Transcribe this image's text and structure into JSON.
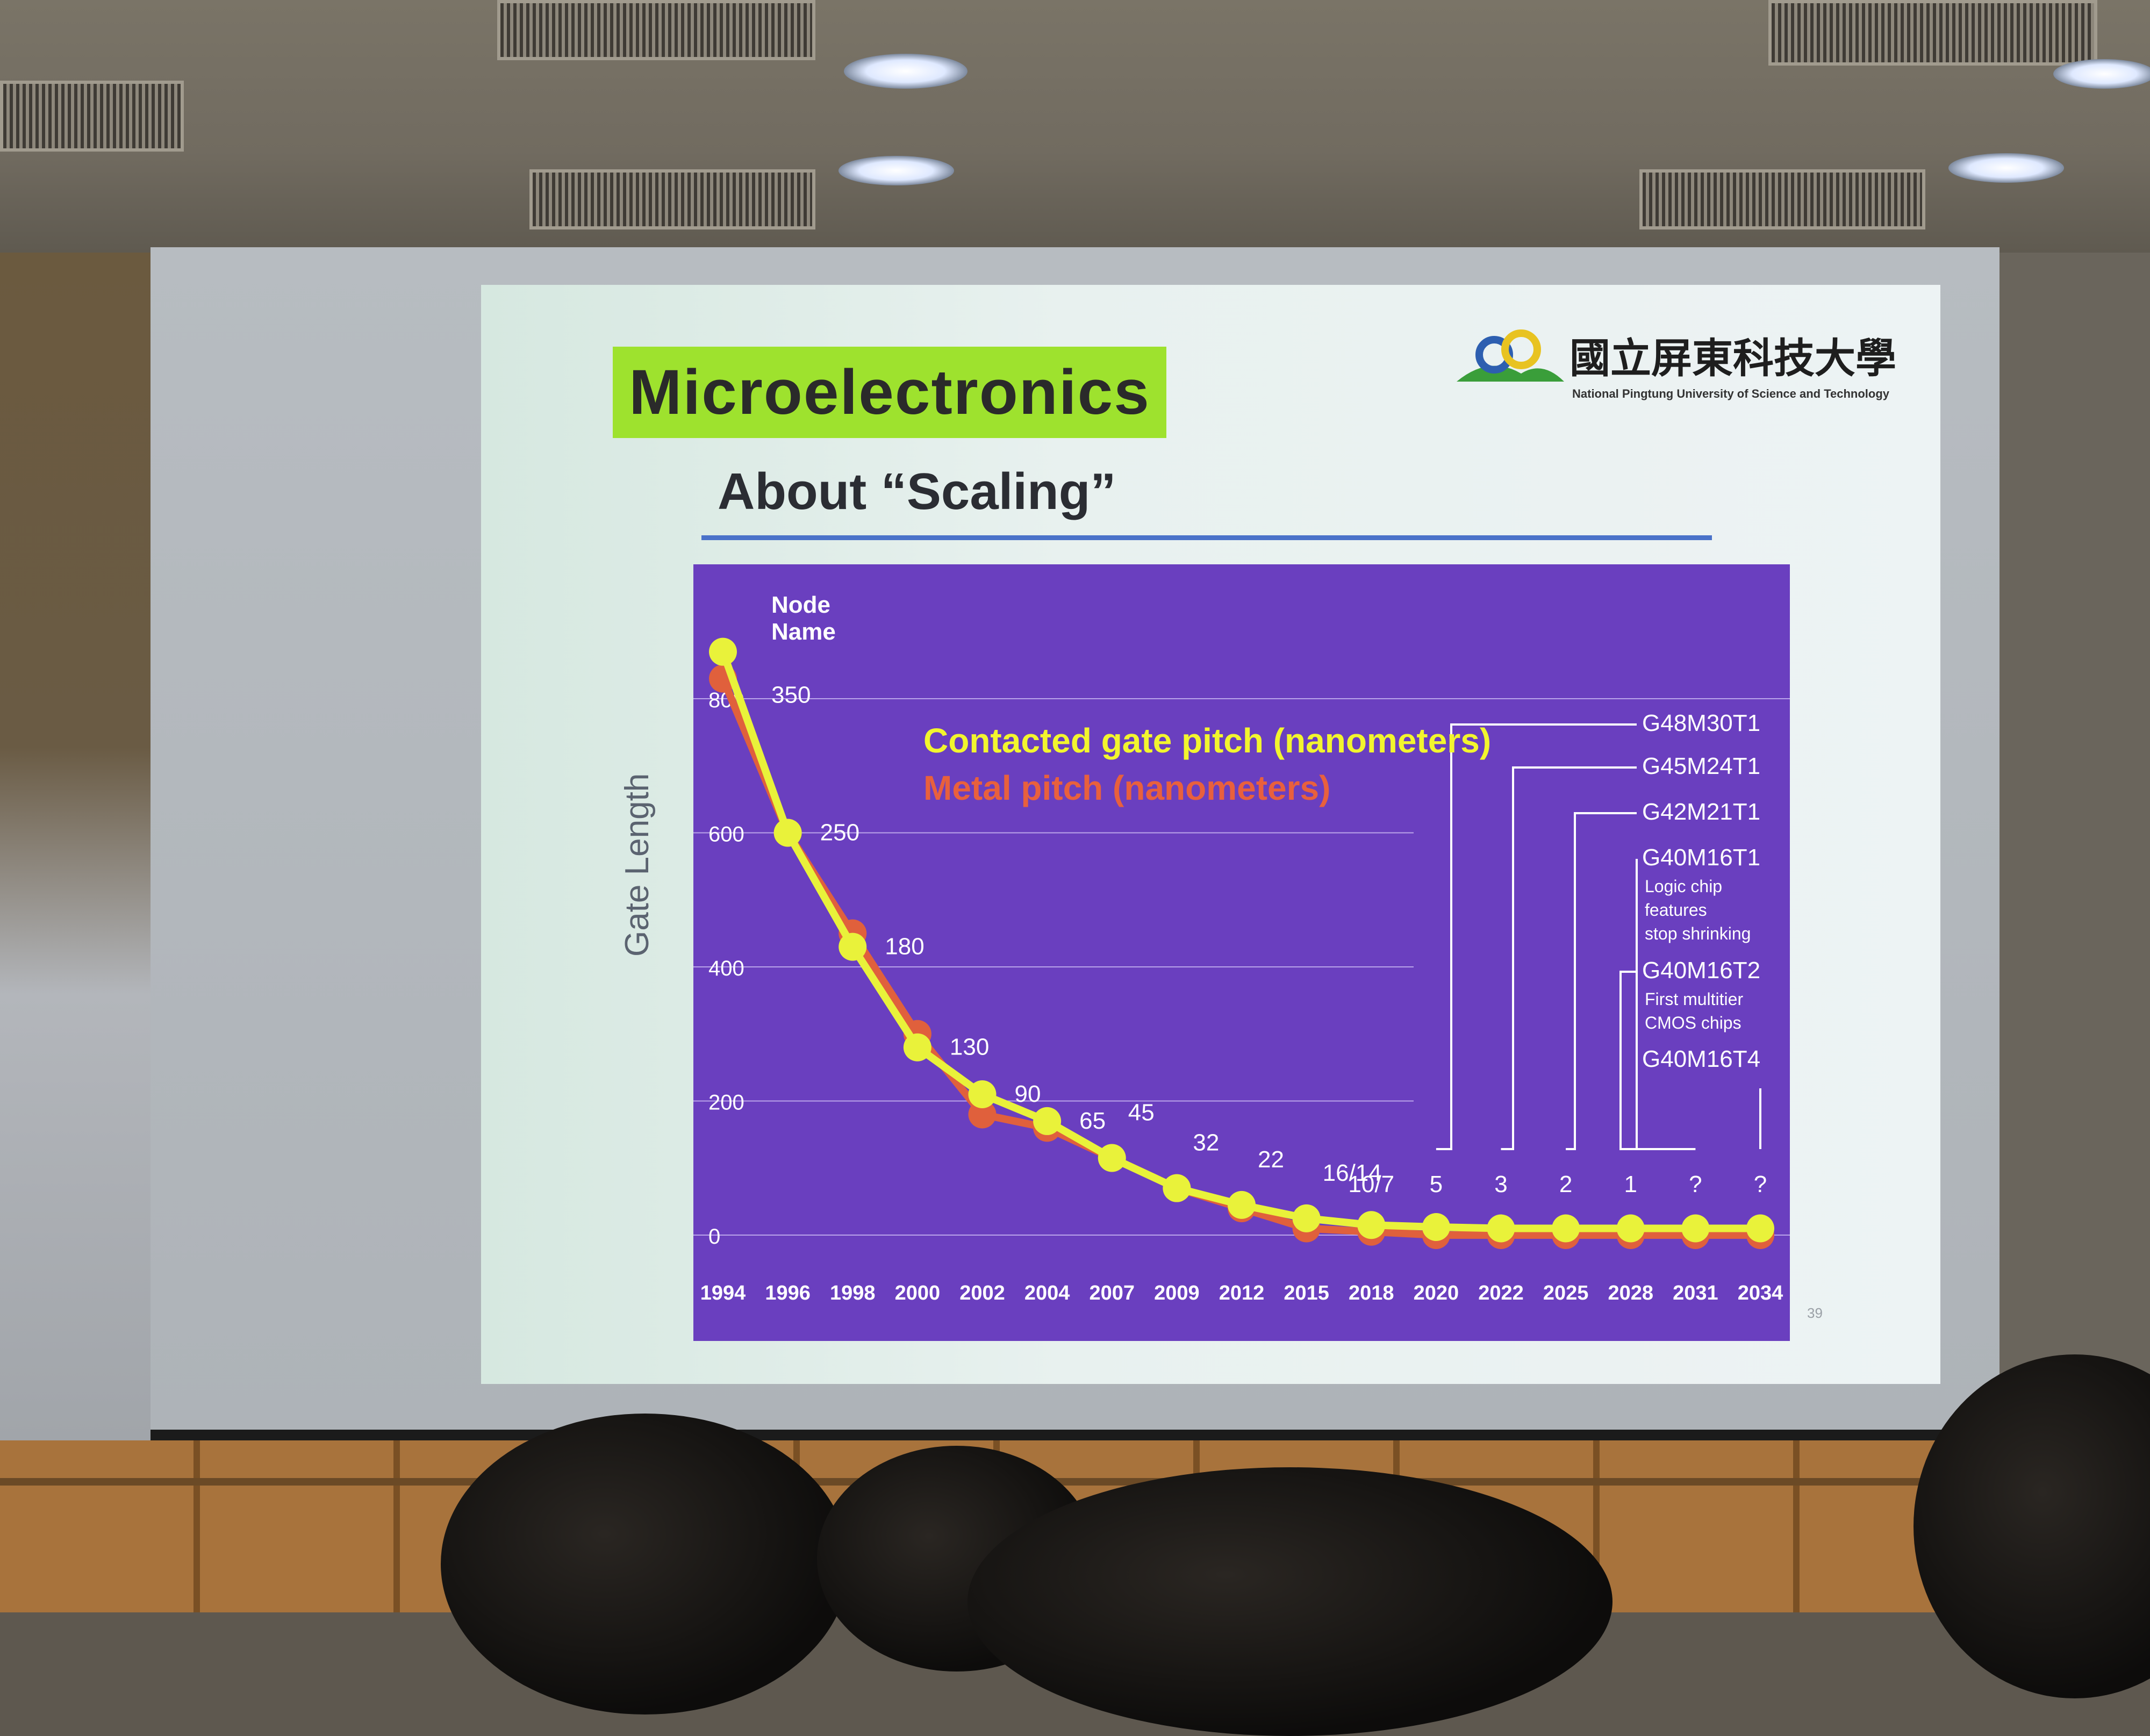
{
  "slide": {
    "title": "Microelectronics",
    "subtitle": "About “Scaling”",
    "logo_text_cn": "國立屏東科技大學",
    "logo_text_en": "National Pingtung University of Science and Technology",
    "page_number": "39"
  },
  "chart_data": {
    "type": "line",
    "ylabel": "Gate Length",
    "yticks": [
      "800",
      "600",
      "400",
      "200",
      "0"
    ],
    "ylim": [
      0,
      800
    ],
    "node_header": "Node\nName",
    "legend": [
      {
        "label": "Contacted gate pitch (nanometers)",
        "color": "#f2f52e"
      },
      {
        "label": "Metal pitch (nanometers)",
        "color": "#e8603d"
      }
    ],
    "categories": [
      "1994",
      "1996",
      "1998",
      "2000",
      "2002",
      "2004",
      "2007",
      "2009",
      "2012",
      "2015",
      "2018",
      "2020",
      "2022",
      "2025",
      "2028",
      "2031",
      "2034"
    ],
    "node_names": [
      "350",
      "250",
      "180",
      "130",
      "90",
      "65",
      "45",
      "32",
      "22",
      "16/14",
      "10/7",
      "5",
      "3",
      "2",
      "1",
      "?",
      "?"
    ],
    "series": [
      {
        "name": "Contacted gate pitch (nanometers)",
        "color": "#e9f23a",
        "values": [
          870,
          600,
          430,
          280,
          210,
          170,
          115,
          70,
          45,
          25,
          15,
          12,
          10,
          10,
          10,
          10,
          10
        ]
      },
      {
        "name": "Metal pitch (nanometers)",
        "color": "#e0603c",
        "values": [
          830,
          600,
          450,
          300,
          180,
          160,
          115,
          70,
          40,
          10,
          5,
          0,
          0,
          0,
          0,
          0,
          0
        ]
      }
    ],
    "annotations": [
      {
        "label": "G48M30T1",
        "note": ""
      },
      {
        "label": "G45M24T1",
        "note": ""
      },
      {
        "label": "G42M21T1",
        "note": ""
      },
      {
        "label": "G40M16T1",
        "note": "Logic chip\nfeatures\nstop shrinking"
      },
      {
        "label": "G40M16T2",
        "note": "First multitier\nCMOS chips"
      },
      {
        "label": "G40M16T4",
        "note": ""
      }
    ],
    "background": "#6a3fbf"
  }
}
